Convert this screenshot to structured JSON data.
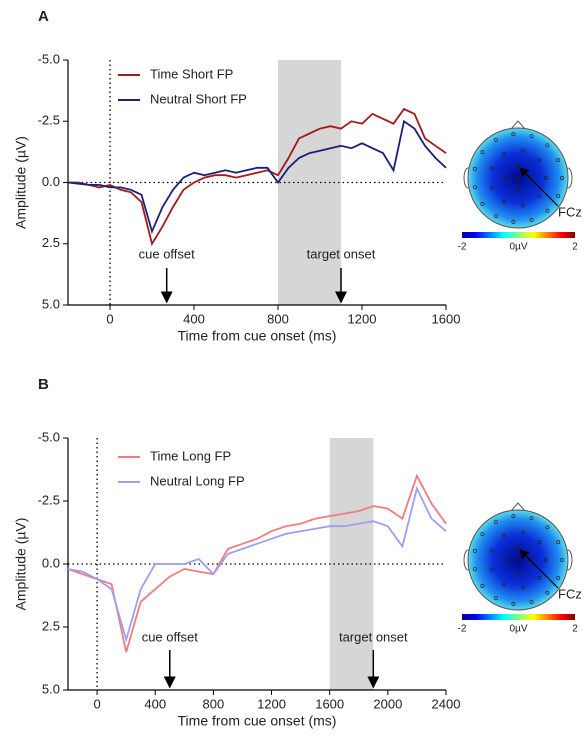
{
  "chart_data": [
    {
      "type": "line",
      "panel": "A",
      "ylabel": "Amplitude (µV)",
      "xlabel": "Time from cue onset (ms)",
      "x": [
        -200,
        -150,
        -100,
        -50,
        0,
        50,
        100,
        150,
        200,
        250,
        300,
        350,
        400,
        450,
        500,
        550,
        600,
        650,
        700,
        750,
        800,
        850,
        900,
        950,
        1000,
        1050,
        1100,
        1150,
        1200,
        1250,
        1300,
        1350,
        1400,
        1450,
        1500,
        1550,
        1600
      ],
      "series": [
        {
          "name": "Time Short FP",
          "color": "#a31a1a",
          "values": [
            0.0,
            0.0,
            0.1,
            0.2,
            0.1,
            0.3,
            0.4,
            0.8,
            2.5,
            1.8,
            1.0,
            0.3,
            0.0,
            -0.2,
            -0.3,
            -0.3,
            -0.2,
            -0.3,
            -0.4,
            -0.5,
            -0.3,
            -1.0,
            -1.8,
            -2.0,
            -2.2,
            -2.3,
            -2.2,
            -2.5,
            -2.4,
            -2.8,
            -2.6,
            -2.4,
            -3.0,
            -2.8,
            -1.8,
            -1.5,
            -1.2
          ]
        },
        {
          "name": "Neutral Short FP",
          "color": "#1c1f7a",
          "values": [
            0.0,
            0.05,
            0.1,
            0.1,
            0.2,
            0.2,
            0.3,
            0.5,
            2.0,
            1.0,
            0.3,
            -0.2,
            -0.4,
            -0.3,
            -0.4,
            -0.5,
            -0.4,
            -0.5,
            -0.6,
            -0.6,
            0.0,
            -0.6,
            -1.0,
            -1.2,
            -1.3,
            -1.4,
            -1.5,
            -1.4,
            -1.6,
            -1.4,
            -1.2,
            -0.5,
            -2.5,
            -2.2,
            -1.5,
            -1.0,
            -0.6
          ]
        }
      ],
      "xlim": [
        -200,
        1600
      ],
      "xticks": [
        0,
        400,
        800,
        1200,
        1600
      ],
      "ylim": [
        5,
        -5
      ],
      "yticks": [
        {
          "value": -5,
          "label": "-5.0"
        },
        {
          "value": -2.5,
          "label": "-2.5"
        },
        {
          "value": 0,
          "label": "0.0"
        },
        {
          "value": 2.5,
          "label": "2.5"
        },
        {
          "value": 5,
          "label": "5.0"
        }
      ],
      "shaded_span": [
        800,
        1100
      ],
      "annotations": [
        {
          "text": "cue offset",
          "x": 270
        },
        {
          "text": "target onset",
          "x": 1100
        }
      ],
      "topomap": {
        "electrode": "FCz",
        "clim": [
          -2,
          2
        ],
        "colorbar_ticks": [
          -2,
          {
            "value": 0,
            "label": "0µV"
          },
          2
        ]
      }
    },
    {
      "type": "line",
      "panel": "B",
      "ylabel": "Amplitude (µV)",
      "xlabel": "Time from cue onset (ms)",
      "x": [
        -200,
        -100,
        0,
        100,
        200,
        300,
        400,
        500,
        600,
        700,
        800,
        900,
        1000,
        1100,
        1200,
        1300,
        1400,
        1500,
        1600,
        1700,
        1800,
        1900,
        2000,
        2100,
        2200,
        2300,
        2400
      ],
      "series": [
        {
          "name": "Time Long FP",
          "color": "#f47c7c",
          "values": [
            0.2,
            0.4,
            0.6,
            0.8,
            3.5,
            1.5,
            1.0,
            0.5,
            0.2,
            0.3,
            0.4,
            -0.6,
            -0.8,
            -1.0,
            -1.3,
            -1.5,
            -1.6,
            -1.8,
            -1.9,
            -2.0,
            -2.1,
            -2.3,
            -2.2,
            -1.8,
            -3.5,
            -2.4,
            -1.6
          ]
        },
        {
          "name": "Neutral Long FP",
          "color": "#9e9ef5",
          "values": [
            0.2,
            0.3,
            0.6,
            1.0,
            3.0,
            1.0,
            0.0,
            0.0,
            0.0,
            -0.2,
            0.4,
            -0.4,
            -0.6,
            -0.8,
            -1.0,
            -1.2,
            -1.3,
            -1.4,
            -1.5,
            -1.5,
            -1.6,
            -1.7,
            -1.5,
            -0.7,
            -3.0,
            -1.8,
            -1.3
          ]
        }
      ],
      "xlim": [
        -200,
        2400
      ],
      "xticks": [
        0,
        400,
        800,
        1200,
        1600,
        2000,
        2400
      ],
      "ylim": [
        5,
        -5
      ],
      "yticks": [
        {
          "value": -5,
          "label": "-5.0"
        },
        {
          "value": -2.5,
          "label": "-2.5"
        },
        {
          "value": 0,
          "label": "0.0"
        },
        {
          "value": 2.5,
          "label": "2.5"
        },
        {
          "value": 5,
          "label": "5.0"
        }
      ],
      "shaded_span": [
        1600,
        1900
      ],
      "annotations": [
        {
          "text": "cue offset",
          "x": 500
        },
        {
          "text": "target onset",
          "x": 1900
        }
      ],
      "topomap": {
        "electrode": "FCz",
        "clim": [
          -2,
          2
        ],
        "colorbar_ticks": [
          -2,
          {
            "value": 0,
            "label": "0µV"
          },
          2
        ]
      }
    }
  ]
}
